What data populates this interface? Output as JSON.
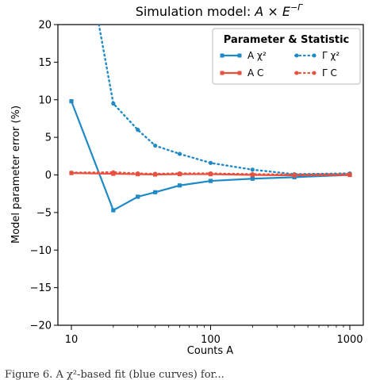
{
  "chart_data": {
    "type": "line",
    "title": "Simulation model: A × E⁻ᴛ",
    "title_text": "Simulation model: ",
    "title_math": "A × E",
    "title_exp": "−Γ",
    "xlabel": "Counts A",
    "ylabel": "Model parameter error (%)",
    "xscale": "log",
    "xlim": [
      8,
      1250
    ],
    "ylim": [
      -20,
      20
    ],
    "x_ticks": [
      10,
      100,
      1000
    ],
    "x_tick_labels": [
      "10",
      "100",
      "1000"
    ],
    "y_ticks": [
      -20,
      -15,
      -10,
      -5,
      0,
      5,
      10,
      15,
      20
    ],
    "y_tick_labels": [
      "−20",
      "−15",
      "−10",
      "−5",
      "0",
      "5",
      "10",
      "15",
      "20"
    ],
    "legend": {
      "title": "Parameter & Statistic",
      "position": "top-right"
    },
    "series": [
      {
        "name": "A χ²",
        "color": "#1f8ac6",
        "style": "solid",
        "marker": "square",
        "x": [
          10,
          20,
          30,
          40,
          60,
          100,
          200,
          400,
          1000
        ],
        "y": [
          9.8,
          -4.7,
          -2.9,
          -2.3,
          -1.4,
          -0.8,
          -0.5,
          -0.3,
          0.0
        ]
      },
      {
        "name": "A C",
        "color": "#e8513f",
        "style": "solid",
        "marker": "square",
        "x": [
          10,
          20,
          30,
          40,
          60,
          100,
          200,
          400,
          1000
        ],
        "y": [
          0.25,
          0.15,
          0.1,
          0.05,
          0.1,
          0.1,
          0.0,
          -0.05,
          0.0
        ]
      },
      {
        "name": "Γ χ²",
        "color": "#1f8ac6",
        "style": "dotted",
        "marker": "circle",
        "x": [
          10,
          20,
          30,
          40,
          60,
          100,
          200,
          400,
          1000
        ],
        "y": [
          40,
          9.5,
          6.0,
          3.9,
          2.8,
          1.6,
          0.7,
          0.1,
          0.2
        ]
      },
      {
        "name": "Γ C",
        "color": "#e8513f",
        "style": "dotted",
        "marker": "circle",
        "x": [
          10,
          20,
          30,
          40,
          60,
          100,
          200,
          400,
          1000
        ],
        "y": [
          0.3,
          0.35,
          0.2,
          0.15,
          0.2,
          0.2,
          0.1,
          0.05,
          0.1
        ]
      }
    ]
  },
  "caption_fragment": "Figure 6. A χ²-based fit (blue curves) for..."
}
